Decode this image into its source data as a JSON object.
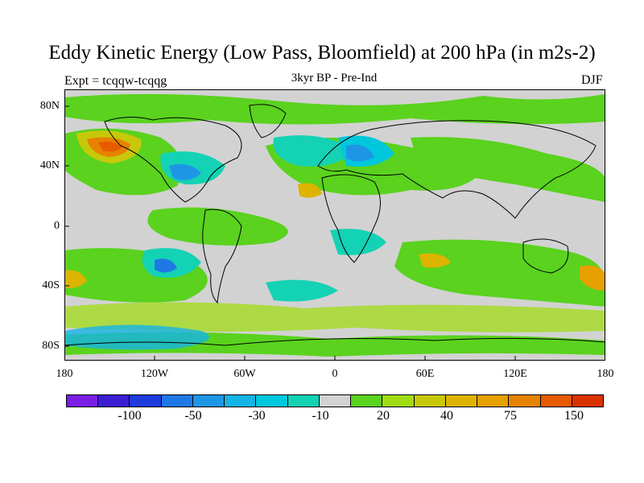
{
  "title": "Eddy Kinetic Energy (Low Pass, Bloomfield) at 200 hPa (in m2s-2)",
  "left_label": "Expt = tcqqw-tcqqg",
  "center_label": "3kyr BP - Pre-Ind",
  "right_label": "DJF",
  "axes": {
    "lat_ticks": [
      "80N",
      "40N",
      "0",
      "40S",
      "80S"
    ],
    "lon_ticks": [
      "180",
      "120W",
      "60W",
      "0",
      "60E",
      "120E",
      "180"
    ]
  },
  "colorbar": {
    "colors": [
      "#7a1ee6",
      "#3c1ed2",
      "#1e3cdc",
      "#1e78e6",
      "#1e96e6",
      "#14b4e6",
      "#00c8dc",
      "#14d2b4",
      "#d2d2d2",
      "#5ad21e",
      "#a0dc14",
      "#c8c80a",
      "#dcb400",
      "#e6a000",
      "#e68200",
      "#e65a00",
      "#dc3200"
    ],
    "labels": [
      "-100",
      "-50",
      "-30",
      "-10",
      "20",
      "40",
      "75",
      "150"
    ]
  },
  "palette": {
    "background": "#d2d2d2",
    "coast": "#000000"
  }
}
